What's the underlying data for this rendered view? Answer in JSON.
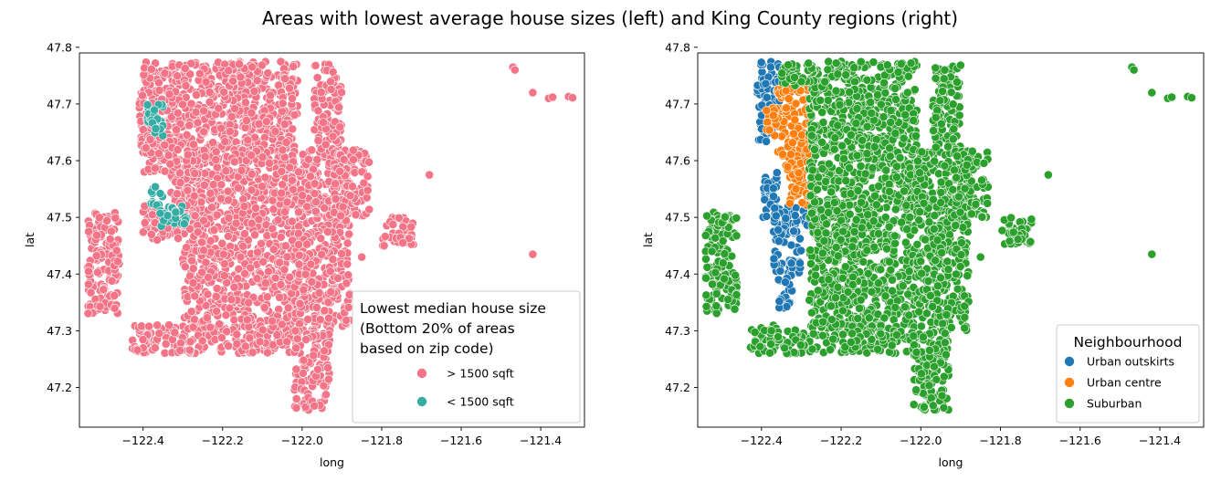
{
  "figure": {
    "suptitle": "Areas with lowest average house sizes (left) and King County regions (right)"
  },
  "chart_data": [
    {
      "type": "scatter",
      "xlabel": "long",
      "ylabel": "lat",
      "xlim": [
        -122.56,
        -121.29
      ],
      "ylim": [
        47.13,
        47.79
      ],
      "xticks": [
        "-122.4",
        "-122.2",
        "-122.0",
        "-121.8",
        "-121.6",
        "-121.4"
      ],
      "yticks": [
        "47.2",
        "47.3",
        "47.4",
        "47.5",
        "47.6",
        "47.7",
        "47.8"
      ],
      "grid": false,
      "legend": {
        "placement": "lower-right",
        "title_lines": [
          "Lowest median house size",
          "(Bottom 20% of areas",
          "based on zip code)"
        ],
        "entries": [
          "> 1500 sqft",
          "< 1500 sqft"
        ]
      },
      "series": [
        {
          "name": "> 1500 sqft",
          "color": "#f37487",
          "clusters": [
            {
              "x": [
                -122.41,
                -122.01
              ],
              "y": [
                47.62,
                47.775
              ]
            },
            {
              "x": [
                -122.3,
                -122.01
              ],
              "y": [
                47.26,
                47.62
              ]
            },
            {
              "x": [
                -122.01,
                -121.88
              ],
              "y": [
                47.3,
                47.62
              ]
            },
            {
              "x": [
                -122.43,
                -122.3
              ],
              "y": [
                47.26,
                47.31
              ]
            },
            {
              "x": [
                -122.33,
                -122.27
              ],
              "y": [
                47.52,
                47.63
              ]
            },
            {
              "x": [
                -122.4,
                -122.31
              ],
              "y": [
                47.58,
                47.65
              ]
            },
            {
              "x": [
                -122.54,
                -122.46
              ],
              "y": [
                47.33,
                47.51
              ]
            },
            {
              "x": [
                -122.02,
                -121.93
              ],
              "y": [
                47.16,
                47.3
              ]
            },
            {
              "x": [
                -121.97,
                -121.9
              ],
              "y": [
                47.62,
                47.77
              ]
            },
            {
              "x": [
                -121.92,
                -121.83
              ],
              "y": [
                47.5,
                47.62
              ]
            },
            {
              "x": [
                -121.8,
                -121.72
              ],
              "y": [
                47.45,
                47.5
              ]
            },
            {
              "x": [
                -122.4,
                -122.31
              ],
              "y": [
                47.46,
                47.52
              ]
            }
          ],
          "points": [
            {
              "x": -121.47,
              "y": 47.765
            },
            {
              "x": -121.465,
              "y": 47.76
            },
            {
              "x": -121.42,
              "y": 47.72
            },
            {
              "x": -121.38,
              "y": 47.71
            },
            {
              "x": -121.37,
              "y": 47.712
            },
            {
              "x": -121.33,
              "y": 47.713
            },
            {
              "x": -121.32,
              "y": 47.711
            },
            {
              "x": -121.68,
              "y": 47.575
            },
            {
              "x": -121.85,
              "y": 47.43
            },
            {
              "x": -121.42,
              "y": 47.435
            }
          ]
        },
        {
          "name": "< 1500 sqft",
          "color": "#36ada4",
          "clusters": [
            {
              "x": [
                -122.39,
                -122.34
              ],
              "y": [
                47.665,
                47.7
              ]
            },
            {
              "x": [
                -122.37,
                -122.35
              ],
              "y": [
                47.64,
                47.67
              ]
            },
            {
              "x": [
                -122.38,
                -122.35
              ],
              "y": [
                47.52,
                47.56
              ]
            },
            {
              "x": [
                -122.36,
                -122.29
              ],
              "y": [
                47.48,
                47.52
              ]
            }
          ],
          "points": []
        }
      ]
    },
    {
      "type": "scatter",
      "xlabel": "long",
      "ylabel": "lat",
      "xlim": [
        -122.56,
        -121.29
      ],
      "ylim": [
        47.13,
        47.79
      ],
      "xticks": [
        "-122.4",
        "-122.2",
        "-122.0",
        "-121.8",
        "-121.6",
        "-121.4"
      ],
      "yticks": [
        "47.2",
        "47.3",
        "47.4",
        "47.5",
        "47.6",
        "47.7",
        "47.8"
      ],
      "grid": false,
      "legend": {
        "placement": "lower-right",
        "title_lines": [
          "Neighbourhood"
        ],
        "entries": [
          "Urban outskirts",
          "Urban centre",
          "Suburban"
        ]
      },
      "series": [
        {
          "name": "Urban outskirts",
          "color": "#1f77b4",
          "clusters": [
            {
              "x": [
                -122.41,
                -122.35
              ],
              "y": [
                47.7,
                47.775
              ]
            },
            {
              "x": [
                -122.41,
                -122.37
              ],
              "y": [
                47.63,
                47.7
              ]
            },
            {
              "x": [
                -122.4,
                -122.36
              ],
              "y": [
                47.5,
                47.58
              ]
            },
            {
              "x": [
                -122.37,
                -122.26
              ],
              "y": [
                47.48,
                47.52
              ]
            },
            {
              "x": [
                -122.37,
                -122.3
              ],
              "y": [
                47.4,
                47.48
              ]
            },
            {
              "x": [
                -122.36,
                -122.32
              ],
              "y": [
                47.34,
                47.4
              ]
            }
          ],
          "points": []
        },
        {
          "name": "Urban centre",
          "color": "#ff7f0e",
          "clusters": [
            {
              "x": [
                -122.36,
                -122.27
              ],
              "y": [
                47.6,
                47.73
              ]
            },
            {
              "x": [
                -122.34,
                -122.28
              ],
              "y": [
                47.52,
                47.6
              ]
            },
            {
              "x": [
                -122.39,
                -122.36
              ],
              "y": [
                47.64,
                47.7
              ]
            }
          ],
          "points": []
        },
        {
          "name": "Suburban",
          "color": "#2ca02c",
          "clusters": [
            {
              "x": [
                -122.28,
                -122.01
              ],
              "y": [
                47.3,
                47.775
              ]
            },
            {
              "x": [
                -122.3,
                -122.01
              ],
              "y": [
                47.26,
                47.3
              ]
            },
            {
              "x": [
                -122.01,
                -121.88
              ],
              "y": [
                47.3,
                47.62
              ]
            },
            {
              "x": [
                -122.43,
                -122.3
              ],
              "y": [
                47.26,
                47.31
              ]
            },
            {
              "x": [
                -122.54,
                -122.46
              ],
              "y": [
                47.33,
                47.51
              ]
            },
            {
              "x": [
                -122.02,
                -121.93
              ],
              "y": [
                47.16,
                47.3
              ]
            },
            {
              "x": [
                -121.97,
                -121.9
              ],
              "y": [
                47.62,
                47.77
              ]
            },
            {
              "x": [
                -121.92,
                -121.83
              ],
              "y": [
                47.5,
                47.62
              ]
            },
            {
              "x": [
                -121.8,
                -121.72
              ],
              "y": [
                47.45,
                47.5
              ]
            },
            {
              "x": [
                -122.35,
                -122.27
              ],
              "y": [
                47.73,
                47.775
              ]
            }
          ],
          "points": [
            {
              "x": -121.47,
              "y": 47.765
            },
            {
              "x": -121.465,
              "y": 47.76
            },
            {
              "x": -121.42,
              "y": 47.72
            },
            {
              "x": -121.38,
              "y": 47.71
            },
            {
              "x": -121.37,
              "y": 47.712
            },
            {
              "x": -121.33,
              "y": 47.713
            },
            {
              "x": -121.32,
              "y": 47.711
            },
            {
              "x": -121.68,
              "y": 47.575
            },
            {
              "x": -121.85,
              "y": 47.43
            },
            {
              "x": -121.42,
              "y": 47.435
            }
          ]
        }
      ]
    }
  ]
}
